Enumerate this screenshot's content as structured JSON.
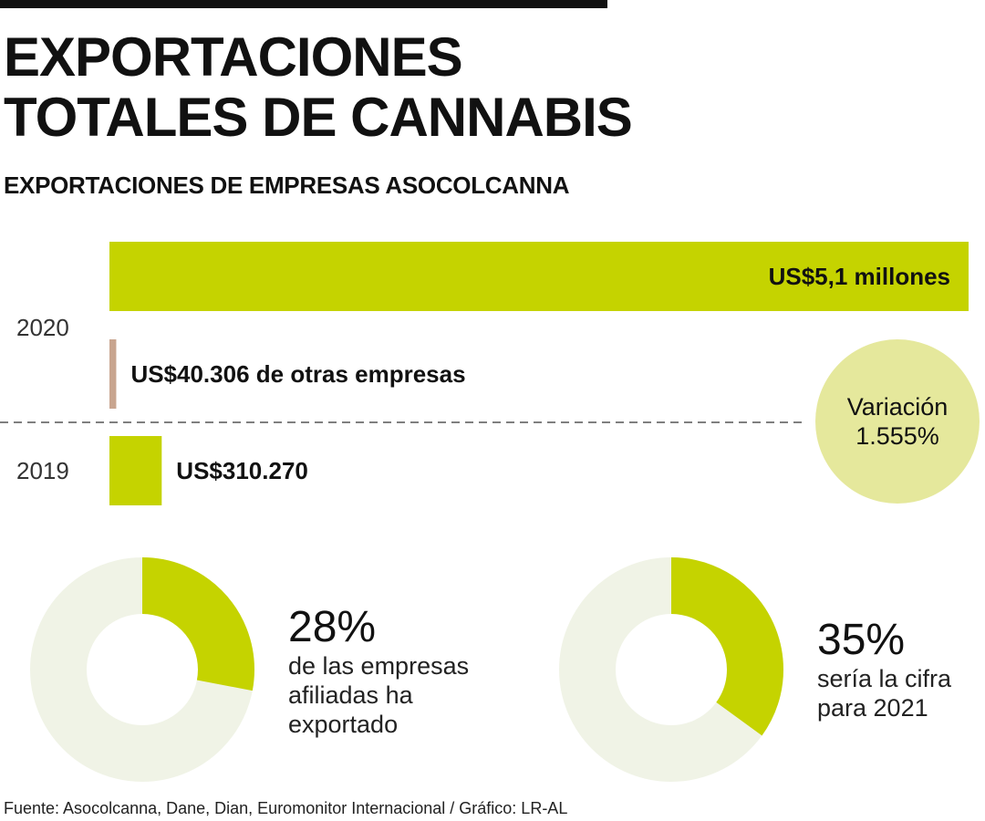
{
  "header": {
    "title_line1": "EXPORTACIONES",
    "title_line2": "TOTALES DE CANNABIS",
    "subtitle": "EXPORTACIONES DE EMPRESAS ASOCOLCANNA"
  },
  "colors": {
    "bar_green": "#c5d300",
    "bar_other": "#c8a58f",
    "bubble": "#e5e89c",
    "donut_track": "#f0f3e6",
    "donut_fill": "#c5d300",
    "dash": "#555555"
  },
  "chart_data": {
    "type": "bar",
    "orientation": "horizontal",
    "unit": "US$",
    "bars": [
      {
        "year": "2020",
        "series": "Asocolcanna",
        "value": 5100000,
        "label": "US$5,1 millones"
      },
      {
        "year": "2020",
        "series": "Otras empresas",
        "value": 40306,
        "label": "US$40.306 de otras empresas"
      },
      {
        "year": "2019",
        "series": "Asocolcanna",
        "value": 310270,
        "label": "US$310.270"
      }
    ],
    "year_labels": [
      "2020",
      "2019"
    ]
  },
  "variation": {
    "label": "Variación",
    "value": "1.555%"
  },
  "donuts": [
    {
      "percent": 28,
      "value_label": "28%",
      "lines": [
        "de las empresas",
        "afiliadas ha",
        "exportado"
      ]
    },
    {
      "percent": 35,
      "value_label": "35%",
      "lines": [
        "sería la cifra",
        "para 2021"
      ]
    }
  ],
  "source": "Fuente: Asocolcanna, Dane, Dian, Euromonitor Internacional / Gráfico: LR-AL"
}
